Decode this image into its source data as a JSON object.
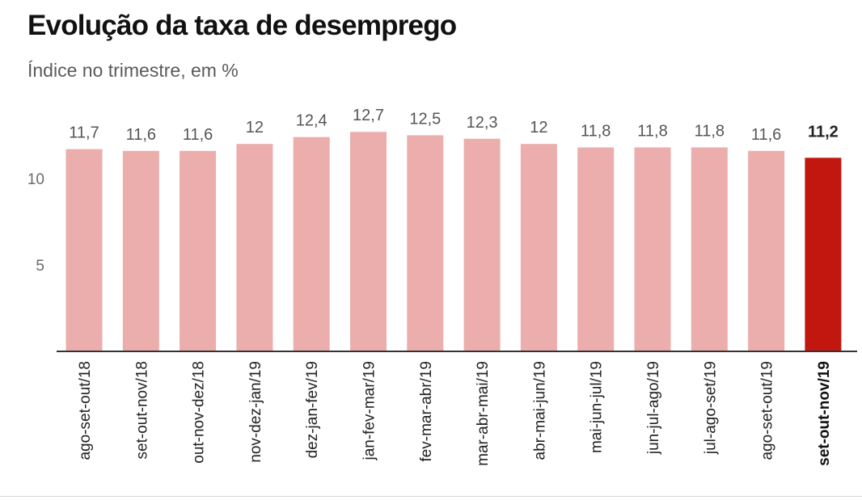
{
  "title": "Evolução da taxa de desemprego",
  "subtitle": "Índice no trimestre, em %",
  "chart_data": {
    "type": "bar",
    "title": "Evolução da taxa de desemprego",
    "subtitle": "Índice no trimestre, em %",
    "categories": [
      "ago-set-out/18",
      "set-out-nov/18",
      "out-nov-dez/18",
      "nov-dez-jan/19",
      "dez-jan-fev/19",
      "jan-fev-mar/19",
      "fev-mar-abr/19",
      "mar-abr-mai/19",
      "abr-mai-jun/19",
      "mai-jun-jul/19",
      "jun-jul-ago/19",
      "jul-ago-set/19",
      "ago-set-out/19",
      "set-out-nov/19"
    ],
    "values": [
      11.7,
      11.6,
      11.6,
      12,
      12.4,
      12.7,
      12.5,
      12.3,
      12,
      11.8,
      11.8,
      11.8,
      11.6,
      11.2
    ],
    "value_labels": [
      "11,7",
      "11,6",
      "11,6",
      "12",
      "12,4",
      "12,7",
      "12,5",
      "12,3",
      "12",
      "11,8",
      "11,8",
      "11,8",
      "11,6",
      "11,2"
    ],
    "highlight_index": 13,
    "yticks": [
      5,
      10
    ],
    "ytick_labels": [
      "5",
      "10"
    ],
    "ylim": [
      0,
      13.5
    ],
    "grid": false,
    "colors": {
      "bar": "#ebaeac",
      "highlight": "#c1170f",
      "axis": "#333333",
      "text": "#555555",
      "highlight_text": "#222222"
    }
  }
}
